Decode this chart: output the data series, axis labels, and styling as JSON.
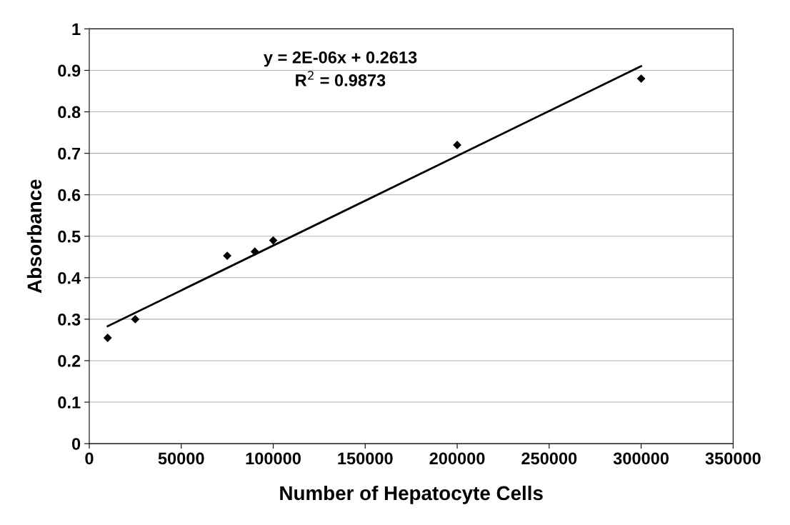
{
  "chart_data": {
    "type": "scatter",
    "xlabel": "Number of Hepatocyte Cells",
    "ylabel": "Absorbance",
    "xlim": [
      0,
      350000
    ],
    "xticks": [
      0,
      50000,
      100000,
      150000,
      200000,
      250000,
      300000,
      350000
    ],
    "ylim": [
      0,
      1
    ],
    "yticks": [
      0,
      0.1,
      0.2,
      0.3,
      0.4,
      0.5,
      0.6,
      0.7,
      0.8,
      0.9,
      1
    ],
    "grid": "y",
    "legend": false,
    "series": [
      {
        "color": "#000000",
        "marker": "diamond",
        "x": [
          10000,
          25000,
          75000,
          90000,
          100000,
          200000,
          300000
        ],
        "values": [
          0.255,
          0.3,
          0.453,
          0.463,
          0.49,
          0.72,
          0.88
        ]
      },
      {
        "type": "line",
        "color": "#000000",
        "marker": "none",
        "x": [
          10000,
          300000
        ],
        "values": [
          0.283,
          0.91
        ]
      }
    ],
    "annotations": [
      "y = 2E-06x + 0.2613\nR$^{2}$ = 0.9873"
    ]
  }
}
